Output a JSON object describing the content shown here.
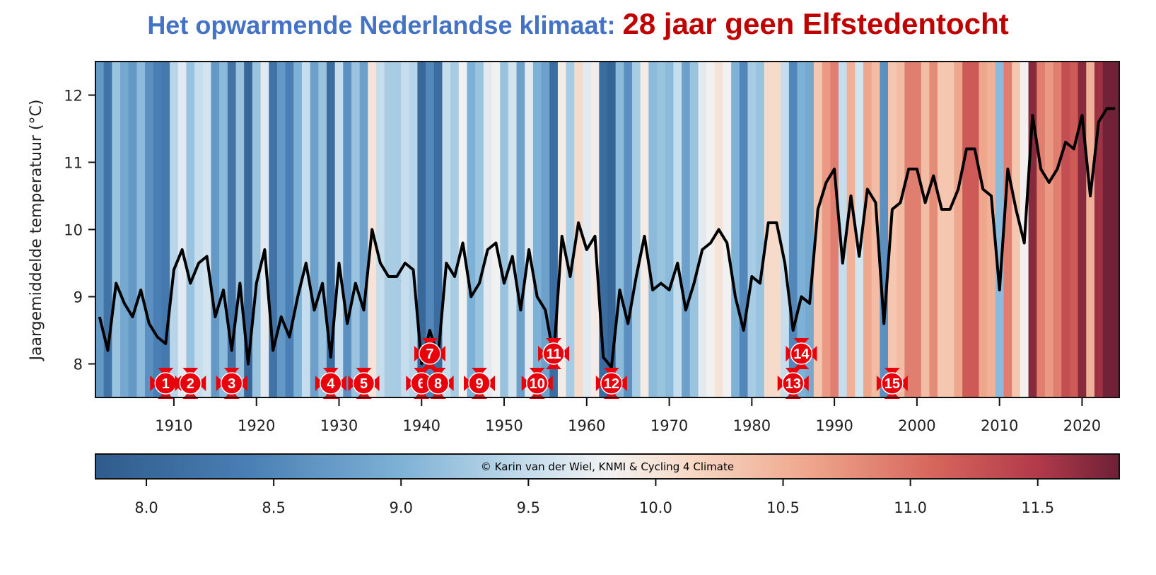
{
  "title": {
    "part1": "Het opwarmende Nederlandse klimaat:",
    "part2": "28 jaar geen Elfstedentocht",
    "color1": "#4472c4",
    "color2": "#c00000"
  },
  "chart_data": {
    "type": "line",
    "title": "Het opwarmende Nederlandse klimaat: 28 jaar geen Elfstedentocht",
    "ylabel": "Jaargemiddelde temperatuur (°C)",
    "xlabel": "",
    "xlim": [
      1900.5,
      2024.5
    ],
    "ylim": [
      7.5,
      12.5
    ],
    "xticks": [
      1910,
      1920,
      1930,
      1940,
      1950,
      1960,
      1970,
      1980,
      1990,
      2000,
      2010,
      2020
    ],
    "yticks": [
      8,
      9,
      10,
      11,
      12
    ],
    "x_start_year": 1901,
    "values": [
      8.7,
      8.2,
      9.2,
      8.9,
      8.7,
      9.1,
      8.6,
      8.4,
      8.3,
      9.4,
      9.7,
      9.2,
      9.5,
      9.6,
      8.7,
      9.1,
      8.2,
      9.2,
      8.0,
      9.2,
      9.7,
      8.2,
      8.7,
      8.4,
      9.0,
      9.5,
      8.8,
      9.2,
      8.1,
      9.5,
      8.6,
      9.2,
      8.8,
      10.0,
      9.5,
      9.3,
      9.3,
      9.5,
      9.4,
      8.0,
      8.5,
      8.1,
      9.5,
      9.3,
      9.8,
      9.0,
      9.2,
      9.7,
      9.8,
      9.2,
      9.6,
      8.8,
      9.7,
      9.0,
      8.8,
      8.1,
      9.9,
      9.3,
      10.1,
      9.7,
      9.9,
      8.1,
      7.95,
      9.1,
      8.6,
      9.3,
      9.9,
      9.1,
      9.2,
      9.1,
      9.5,
      8.8,
      9.2,
      9.7,
      9.8,
      10.0,
      9.8,
      9.0,
      8.5,
      9.3,
      9.2,
      10.1,
      10.1,
      9.5,
      8.5,
      9.0,
      8.9,
      10.3,
      10.7,
      10.9,
      9.5,
      10.5,
      9.6,
      10.6,
      10.4,
      8.6,
      10.3,
      10.4,
      10.9,
      10.9,
      10.4,
      10.8,
      10.3,
      10.3,
      10.6,
      11.2,
      11.2,
      10.6,
      10.5,
      9.1,
      10.9,
      10.3,
      9.8,
      11.7,
      10.9,
      10.7,
      10.9,
      11.3,
      11.2,
      11.7,
      10.5,
      11.6,
      11.8,
      11.8
    ],
    "stripes": "warming stripes colored by annual mean temperature",
    "elfstedentochten": [
      {
        "n": "1",
        "year": 1909
      },
      {
        "n": "2",
        "year": 1912
      },
      {
        "n": "3",
        "year": 1917
      },
      {
        "n": "4",
        "year": 1929
      },
      {
        "n": "5",
        "year": 1933
      },
      {
        "n": "6",
        "year": 1940
      },
      {
        "n": "7",
        "year": 1941
      },
      {
        "n": "8",
        "year": 1942
      },
      {
        "n": "9",
        "year": 1947
      },
      {
        "n": "10",
        "year": 1954
      },
      {
        "n": "11",
        "year": 1956
      },
      {
        "n": "12",
        "year": 1963
      },
      {
        "n": "13",
        "year": 1985
      },
      {
        "n": "14",
        "year": 1986
      },
      {
        "n": "15",
        "year": 1997
      }
    ],
    "colorbar": {
      "range": [
        7.8,
        11.82
      ],
      "ticks": [
        "8.0",
        "8.5",
        "9.0",
        "9.5",
        "10.0",
        "10.5",
        "11.0",
        "11.5"
      ],
      "colors": [
        "#2f5b8c",
        "#4a7fb5",
        "#7fb2d6",
        "#c3dcec",
        "#f2f2f2",
        "#f8d9c6",
        "#eea58a",
        "#d6655c",
        "#b23a4a",
        "#6e2037"
      ],
      "stops": [
        0,
        0.15,
        0.3,
        0.42,
        0.5,
        0.58,
        0.7,
        0.82,
        0.92,
        1
      ]
    },
    "marker_color": "#e8000b",
    "line_color": "#000000"
  },
  "credit": "© Karin van der Wiel, KNMI & Cycling 4 Climate"
}
